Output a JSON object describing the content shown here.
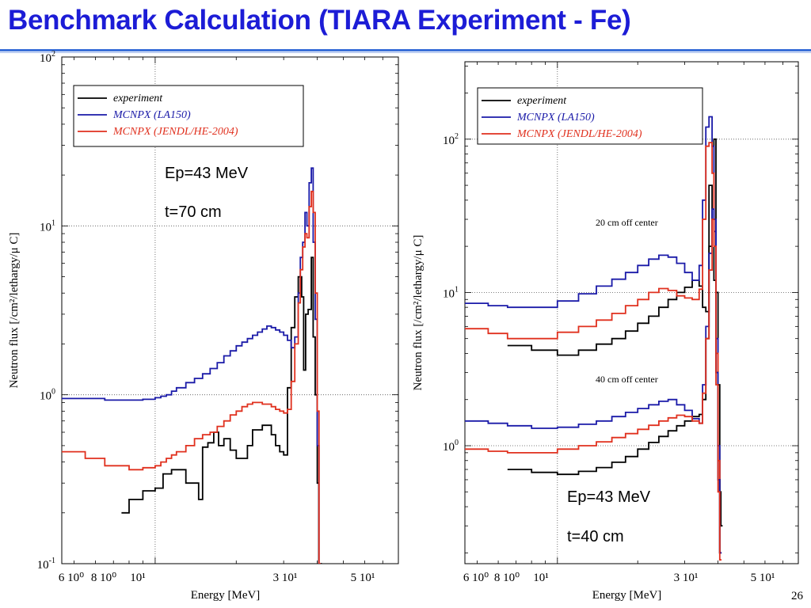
{
  "slide": {
    "title": "Benchmark Calculation (TIARA Experiment - Fe)",
    "page_number": "26"
  },
  "colors": {
    "title": "#1c1cd6",
    "experiment": "#000000",
    "la150": "#1a1aa8",
    "jendl": "#e0301e"
  },
  "chart_data": [
    {
      "type": "line",
      "step": true,
      "xlabel": "Energy [MeV]",
      "ylabel": "Neutron flux [/cm²/lethargy/μ C]",
      "x_scale": "log",
      "y_scale": "log",
      "xlim": [
        4.5,
        80
      ],
      "ylim": [
        0.1,
        100
      ],
      "x_tick_labels": [
        "6 10⁰",
        "8 10⁰",
        "10¹",
        "3 10¹",
        "5 10¹"
      ],
      "y_ticks": [
        0.1,
        1,
        10,
        100
      ],
      "y_tick_labels": [
        {
          "base": "10",
          "exp": "-1"
        },
        {
          "base": "10",
          "exp": "0"
        },
        {
          "base": "10",
          "exp": "1"
        },
        {
          "base": "10",
          "exp": "2"
        }
      ],
      "grid": true,
      "legend_placement": "top-left",
      "annotations": [
        "Ep=43 MeV",
        "t=70 cm"
      ],
      "series": [
        {
          "name": "experiment",
          "color": "#000000",
          "x": [
            7.5,
            8,
            8.5,
            9,
            10,
            10.7,
            11.5,
            12.5,
            13,
            13.6,
            14.5,
            15,
            15.7,
            16.5,
            17.2,
            18,
            19,
            20,
            21,
            22,
            23,
            25,
            27,
            28,
            29,
            30,
            31,
            32,
            33,
            34,
            35,
            35.6,
            36.2,
            37,
            38,
            38.6,
            39.3,
            40,
            40.5,
            41
          ],
          "y": [
            0.2,
            0.24,
            0.24,
            0.27,
            0.28,
            0.34,
            0.36,
            0.36,
            0.3,
            0.3,
            0.24,
            0.49,
            0.52,
            0.6,
            0.5,
            0.55,
            0.47,
            0.42,
            0.42,
            0.5,
            0.62,
            0.66,
            0.58,
            0.5,
            0.46,
            0.44,
            1.1,
            2.5,
            3.8,
            5.0,
            3.8,
            1.4,
            3.0,
            3.2,
            6.5,
            2.2,
            1.0,
            0.3,
            0.1,
            0.1
          ]
        },
        {
          "name": "MCNPX (LA150)",
          "color": "#1a1aa8",
          "x": [
            4.5,
            5.5,
            6.5,
            8,
            9,
            10,
            10.5,
            11,
            11.5,
            12,
            13,
            14,
            15,
            16,
            17,
            18,
            19,
            20,
            21,
            22,
            23,
            24,
            25,
            26,
            27,
            28,
            29,
            30,
            31,
            32,
            33,
            34,
            34.6,
            35.3,
            36,
            36.6,
            37.3,
            38,
            38.6,
            39.3,
            40,
            40.6
          ],
          "y": [
            0.95,
            0.95,
            0.93,
            0.93,
            0.94,
            0.96,
            0.98,
            1.0,
            1.05,
            1.1,
            1.18,
            1.25,
            1.33,
            1.43,
            1.55,
            1.7,
            1.82,
            1.95,
            2.05,
            2.15,
            2.25,
            2.35,
            2.45,
            2.55,
            2.5,
            2.42,
            2.35,
            2.25,
            2.1,
            1.9,
            2.2,
            4.0,
            6.5,
            8.0,
            12,
            10,
            18,
            22,
            8,
            2.8,
            0.5,
            0.1
          ]
        },
        {
          "name": "MCNPX (JENDL/HE-2004)",
          "color": "#e0301e",
          "x": [
            4.5,
            5.5,
            6.5,
            8,
            9,
            10,
            10.5,
            11,
            11.5,
            12,
            13,
            14,
            15,
            16,
            17,
            18,
            19,
            20,
            21,
            22,
            23,
            24,
            25,
            26,
            27,
            28,
            29,
            30,
            31,
            32,
            33,
            34,
            34.6,
            35.3,
            36,
            36.6,
            37.3,
            38,
            38.6,
            39.3,
            40,
            40.6
          ],
          "y": [
            0.46,
            0.42,
            0.38,
            0.36,
            0.37,
            0.38,
            0.4,
            0.42,
            0.44,
            0.46,
            0.5,
            0.55,
            0.58,
            0.6,
            0.65,
            0.7,
            0.76,
            0.8,
            0.85,
            0.88,
            0.9,
            0.9,
            0.88,
            0.88,
            0.85,
            0.82,
            0.8,
            0.78,
            0.82,
            1.2,
            2.0,
            3.5,
            5.5,
            7.5,
            9.0,
            8.5,
            13,
            16,
            12,
            4.0,
            0.8,
            0.1
          ]
        }
      ]
    },
    {
      "type": "line",
      "step": true,
      "xlabel": "Energy [MeV]",
      "ylabel": "Neutron flux [/cm²/lethargy/μ C]",
      "x_scale": "log",
      "y_scale": "log",
      "xlim": [
        4.5,
        80
      ],
      "ylim": [
        0.17,
        320
      ],
      "x_tick_labels": [
        "6 10⁰",
        "8 10⁰",
        "10¹",
        "3 10¹",
        "5 10¹"
      ],
      "y_ticks": [
        1,
        10,
        100
      ],
      "y_tick_labels": [
        {
          "base": "10",
          "exp": "0"
        },
        {
          "base": "10",
          "exp": "1"
        },
        {
          "base": "10",
          "exp": "2"
        }
      ],
      "grid": true,
      "legend_placement": "top-left",
      "annotations": [
        "20 cm off center",
        "40 cm off center",
        "Ep=43 MeV",
        "t=40 cm"
      ],
      "series": [
        {
          "name": "experiment",
          "color": "#000000",
          "group": "20 cm off center",
          "x": [
            6.5,
            8,
            10,
            12,
            14,
            16,
            18,
            20,
            22,
            24,
            26,
            28,
            30,
            32,
            34,
            35,
            36,
            37,
            38,
            38.6,
            39.3,
            40,
            40.6,
            41
          ],
          "y": [
            4.5,
            4.2,
            3.9,
            4.2,
            4.6,
            5.0,
            5.6,
            6.3,
            7.0,
            8.0,
            9.0,
            10,
            10.8,
            12,
            11,
            8.0,
            7.5,
            50,
            30,
            100,
            10,
            2.5,
            0.5,
            0.3
          ]
        },
        {
          "name": "MCNPX (LA150)",
          "color": "#1a1aa8",
          "group": "20 cm off center",
          "x": [
            4.5,
            5.5,
            6.5,
            8,
            10,
            12,
            14,
            16,
            18,
            20,
            22,
            24,
            26,
            28,
            30,
            32,
            34,
            35,
            36,
            37,
            38,
            38.6,
            39.3,
            40,
            40.6
          ],
          "y": [
            8.5,
            8.2,
            8.0,
            8.0,
            8.8,
            9.8,
            11,
            12.2,
            13.5,
            15,
            16.5,
            17.5,
            17,
            15.5,
            13.5,
            12,
            15,
            40,
            120,
            140,
            90,
            30,
            5.0,
            1.0,
            0.2
          ]
        },
        {
          "name": "MCNPX (JENDL/HE-2004)",
          "color": "#e0301e",
          "group": "20 cm off center",
          "x": [
            4.5,
            5.5,
            6.5,
            8,
            10,
            12,
            14,
            16,
            18,
            20,
            22,
            24,
            26,
            28,
            30,
            32,
            34,
            35,
            36,
            37,
            38,
            38.6,
            39.3,
            40,
            40.6
          ],
          "y": [
            5.8,
            5.4,
            5.0,
            5.0,
            5.5,
            6.0,
            6.6,
            7.3,
            8.2,
            9.0,
            10,
            10.6,
            10.3,
            9.5,
            9.2,
            9.0,
            10.5,
            30,
            90,
            95,
            60,
            20,
            4.0,
            0.8,
            0.2
          ]
        },
        {
          "name": "experiment",
          "color": "#000000",
          "group": "40 cm off center",
          "x": [
            6.5,
            8,
            10,
            12,
            14,
            16,
            18,
            20,
            22,
            24,
            26,
            28,
            30,
            32,
            34,
            35,
            36,
            37,
            38,
            38.6,
            39.3,
            40,
            40.6
          ],
          "y": [
            0.7,
            0.67,
            0.65,
            0.68,
            0.72,
            0.78,
            0.85,
            0.95,
            1.05,
            1.15,
            1.25,
            1.35,
            1.45,
            1.55,
            1.6,
            2.0,
            5.0,
            20,
            30,
            12,
            3.0,
            0.6,
            0.2
          ]
        },
        {
          "name": "MCNPX (LA150)",
          "color": "#1a1aa8",
          "group": "40 cm off center",
          "x": [
            4.5,
            5.5,
            6.5,
            8,
            10,
            12,
            14,
            16,
            18,
            20,
            22,
            24,
            26,
            28,
            30,
            32,
            34,
            35,
            36,
            37,
            38,
            38.6,
            39.3,
            40,
            40.6
          ],
          "y": [
            1.45,
            1.4,
            1.35,
            1.3,
            1.32,
            1.38,
            1.45,
            1.55,
            1.65,
            1.75,
            1.85,
            1.95,
            2.0,
            1.85,
            1.7,
            1.5,
            1.4,
            2.5,
            6.0,
            18,
            35,
            25,
            3.0,
            0.6,
            0.2
          ]
        },
        {
          "name": "MCNPX (JENDL/HE-2004)",
          "color": "#e0301e",
          "group": "40 cm off center",
          "x": [
            4.5,
            5.5,
            6.5,
            8,
            10,
            12,
            14,
            16,
            18,
            20,
            22,
            24,
            26,
            28,
            30,
            32,
            34,
            35,
            36,
            37,
            38,
            38.6,
            39.3,
            40,
            40.6
          ],
          "y": [
            0.95,
            0.92,
            0.9,
            0.9,
            0.95,
            1.0,
            1.06,
            1.13,
            1.2,
            1.28,
            1.36,
            1.45,
            1.52,
            1.58,
            1.55,
            1.45,
            1.4,
            2.2,
            5.0,
            14,
            30,
            20,
            2.5,
            0.5,
            0.18
          ]
        }
      ]
    }
  ]
}
